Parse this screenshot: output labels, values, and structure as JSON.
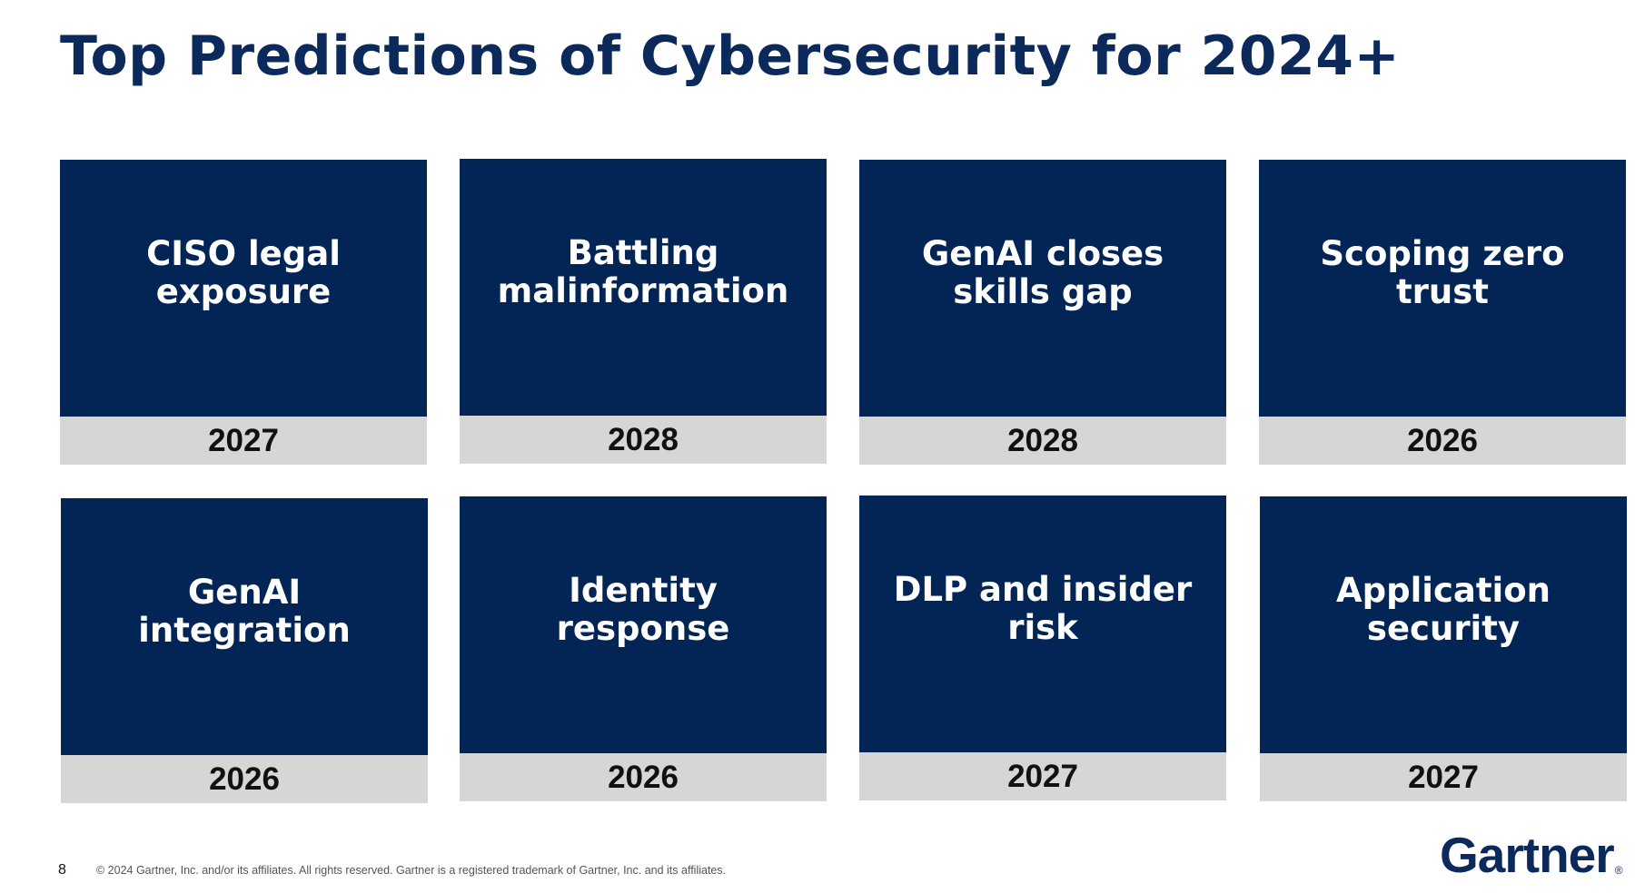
{
  "title": "Top Predictions of Cybersecurity for 2024+",
  "predictions": [
    {
      "label": "CISO legal exposure",
      "year": "2027"
    },
    {
      "label": "Battling malinformation",
      "year": "2028"
    },
    {
      "label": "GenAI closes skills gap",
      "year": "2028"
    },
    {
      "label": "Scoping zero trust",
      "year": "2026"
    },
    {
      "label": "GenAI integration",
      "year": "2026"
    },
    {
      "label": "Identity response",
      "year": "2026"
    },
    {
      "label": "DLP and insider risk",
      "year": "2027"
    },
    {
      "label": "Application security",
      "year": "2027"
    }
  ],
  "footer": {
    "page_number": "8",
    "copyright": "© 2024 Gartner, Inc. and/or its affiliates. All rights reserved. Gartner is a registered trademark of Gartner, Inc. and its affiliates.",
    "logo_text": "Gartner",
    "logo_mark": "®"
  },
  "colors": {
    "title": "#0b2a5b",
    "card_background": "#022555",
    "card_text": "#ffffff",
    "year_background": "#d6d6d6",
    "year_text": "#111111"
  }
}
